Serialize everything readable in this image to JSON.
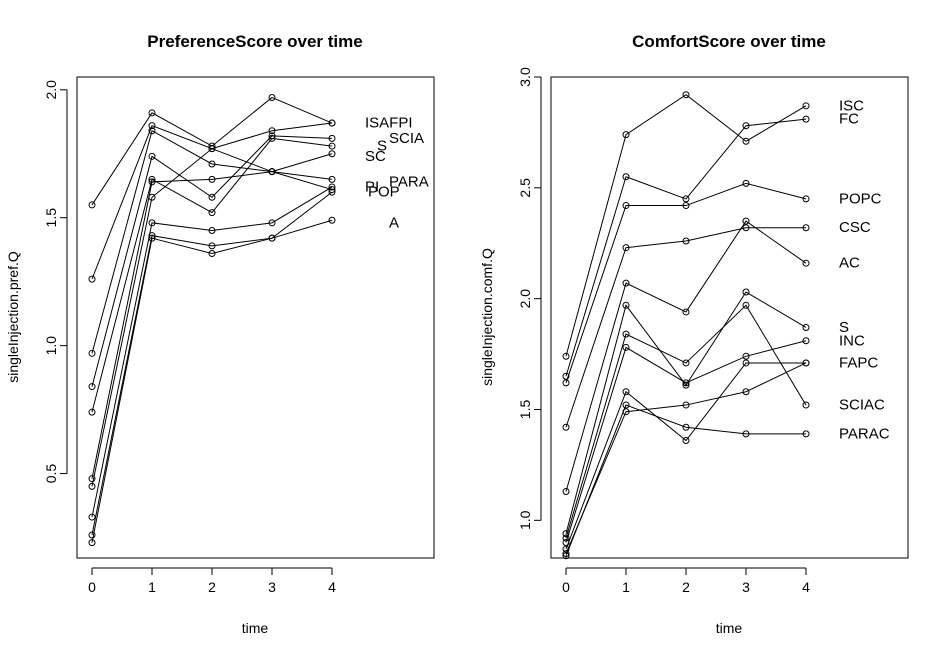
{
  "chart_data": [
    {
      "type": "line",
      "title": "PreferenceScore over time",
      "xlabel": "time",
      "ylabel": "singleInjection.pref.Q",
      "xlim": [
        -0.25,
        5.7
      ],
      "ylim": [
        0.17,
        2.05
      ],
      "x_ticks": [
        "0",
        "1",
        "2",
        "3",
        "4"
      ],
      "y_ticks": [
        "0.5",
        "1.0",
        "1.5",
        "2.0"
      ],
      "x": [
        0,
        1,
        2,
        3,
        4
      ],
      "series": [
        {
          "values": [
            1.55,
            1.91,
            1.78,
            1.97,
            1.87
          ]
        },
        {
          "values": [
            1.26,
            1.86,
            1.77,
            1.84,
            1.87
          ]
        },
        {
          "values": [
            0.97,
            1.84,
            1.71,
            1.68,
            1.65
          ]
        },
        {
          "values": [
            0.84,
            1.74,
            1.58,
            1.82,
            1.81
          ]
        },
        {
          "values": [
            0.74,
            1.65,
            1.52,
            1.81,
            1.78
          ]
        },
        {
          "values": [
            0.48,
            1.64,
            1.65,
            1.68,
            1.75
          ]
        },
        {
          "values": [
            0.45,
            1.58,
            1.77,
            1.68,
            1.61
          ]
        },
        {
          "values": [
            0.33,
            1.48,
            1.45,
            1.48,
            1.62
          ]
        },
        {
          "values": [
            0.26,
            1.43,
            1.39,
            1.42,
            1.6
          ]
        },
        {
          "values": [
            0.23,
            1.42,
            1.36,
            1.42,
            1.49
          ]
        }
      ],
      "text_labels": [
        {
          "text": "ISAFPI",
          "x": 4.55,
          "y": 1.87
        },
        {
          "text": "SCIA",
          "x": 4.95,
          "y": 1.81
        },
        {
          "text": "S",
          "x": 4.75,
          "y": 1.78
        },
        {
          "text": "SC",
          "x": 4.55,
          "y": 1.74
        },
        {
          "text": "PARA",
          "x": 4.95,
          "y": 1.64
        },
        {
          "text": "PI",
          "x": 4.55,
          "y": 1.62
        },
        {
          "text": "POP",
          "x": 4.6,
          "y": 1.6
        },
        {
          "text": "A",
          "x": 4.95,
          "y": 1.48
        }
      ]
    },
    {
      "type": "line",
      "title": "ComfortScore over time",
      "xlabel": "time",
      "ylabel": "singleInjection.comf.Q",
      "xlim": [
        -0.25,
        5.7
      ],
      "ylim": [
        0.83,
        3.0
      ],
      "x_ticks": [
        "0",
        "1",
        "2",
        "3",
        "4"
      ],
      "y_ticks": [
        "1.0",
        "1.5",
        "2.0",
        "2.5",
        "3.0"
      ],
      "x": [
        0,
        1,
        2,
        3,
        4
      ],
      "series": [
        {
          "values": [
            1.74,
            2.74,
            2.92,
            2.71,
            2.87
          ]
        },
        {
          "values": [
            1.65,
            2.55,
            2.45,
            2.78,
            2.81
          ]
        },
        {
          "values": [
            1.62,
            2.42,
            2.42,
            2.52,
            2.45
          ]
        },
        {
          "values": [
            1.42,
            2.23,
            2.26,
            2.32,
            2.32
          ]
        },
        {
          "values": [
            1.13,
            2.07,
            1.94,
            2.35,
            2.16
          ]
        },
        {
          "values": [
            0.94,
            1.97,
            1.61,
            2.03,
            1.87
          ]
        },
        {
          "values": [
            0.92,
            1.84,
            1.71,
            1.97,
            1.52
          ]
        },
        {
          "values": [
            0.9,
            1.78,
            1.62,
            1.74,
            1.81
          ]
        },
        {
          "values": [
            0.87,
            1.58,
            1.36,
            1.71,
            1.71
          ]
        },
        {
          "values": [
            0.84,
            1.52,
            1.42,
            1.39,
            1.39
          ]
        },
        {
          "values": [
            0.85,
            1.49,
            1.52,
            1.58,
            1.71
          ]
        }
      ],
      "text_labels": [
        {
          "text": "ISC",
          "x": 4.55,
          "y": 2.87
        },
        {
          "text": "FC",
          "x": 4.55,
          "y": 2.81
        },
        {
          "text": "POPC",
          "x": 4.55,
          "y": 2.45
        },
        {
          "text": "CSC",
          "x": 4.55,
          "y": 2.32
        },
        {
          "text": "AC",
          "x": 4.55,
          "y": 2.16
        },
        {
          "text": "S",
          "x": 4.55,
          "y": 1.87
        },
        {
          "text": "INC",
          "x": 4.55,
          "y": 1.81
        },
        {
          "text": "FAPC",
          "x": 4.55,
          "y": 1.71
        },
        {
          "text": "SCIAC",
          "x": 4.55,
          "y": 1.52
        },
        {
          "text": "PARAC",
          "x": 4.55,
          "y": 1.39
        }
      ]
    }
  ]
}
